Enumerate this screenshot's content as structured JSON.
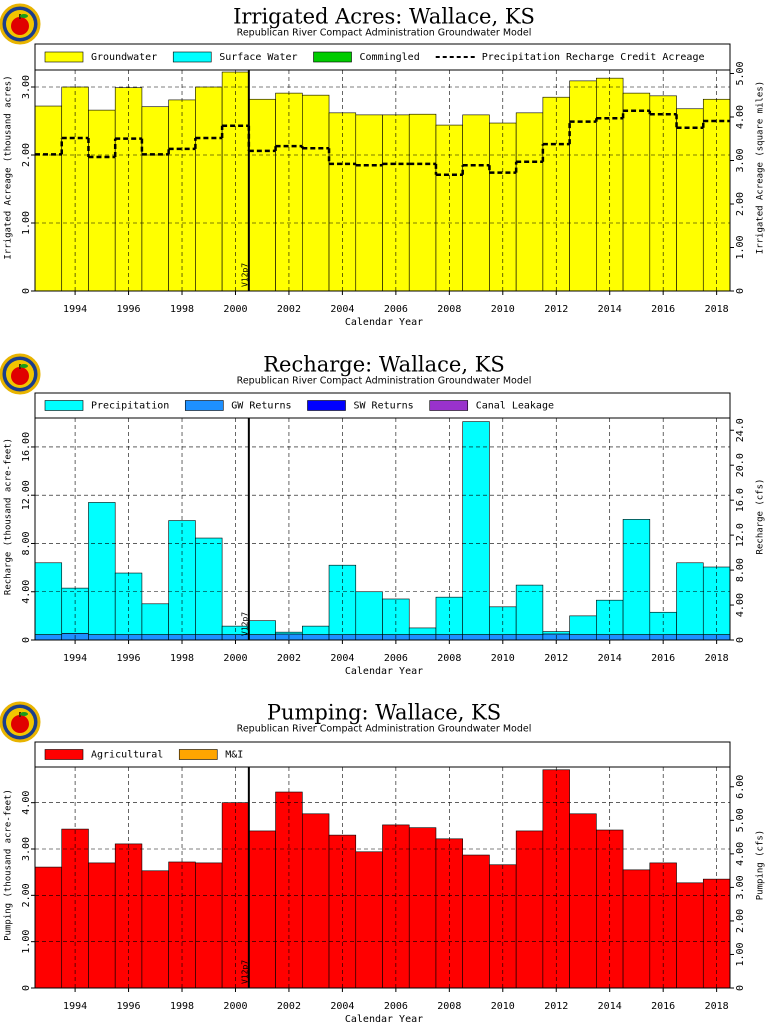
{
  "chart_data": [
    {
      "type": "bar",
      "title": "Irrigated Acres: Wallace, KS",
      "subtitle": "Republican River Compact Administration Groundwater Model",
      "x_label": "Calendar Year",
      "y_label": "Irrigated Acreage (thousand acres)",
      "y2_label": "Irrigated Acreage (square miles)",
      "x": [
        1993,
        1994,
        1995,
        1996,
        1997,
        1998,
        1999,
        2000,
        2001,
        2002,
        2003,
        2004,
        2005,
        2006,
        2007,
        2008,
        2009,
        2010,
        2011,
        2012,
        2013,
        2014,
        2015,
        2016,
        2017,
        2018
      ],
      "series": [
        {
          "name": "Groundwater",
          "color": "#ffff00",
          "values": [
            2.72,
            3.0,
            2.66,
            2.99,
            2.71,
            2.81,
            3.0,
            3.22,
            2.82,
            2.91,
            2.88,
            2.62,
            2.59,
            2.59,
            2.6,
            2.44,
            2.59,
            2.47,
            2.62,
            2.85,
            3.09,
            3.13,
            2.91,
            2.87,
            2.68,
            2.82
          ]
        },
        {
          "name": "Surface Water",
          "color": "#00ffff",
          "values": [
            0,
            0,
            0,
            0,
            0,
            0,
            0,
            0,
            0,
            0,
            0,
            0,
            0,
            0,
            0,
            0,
            0,
            0,
            0,
            0,
            0,
            0,
            0,
            0,
            0,
            0
          ]
        },
        {
          "name": "Commingled",
          "color": "#00cc00",
          "values": [
            0,
            0,
            0,
            0,
            0,
            0,
            0,
            0,
            0,
            0,
            0,
            0,
            0,
            0,
            0,
            0,
            0,
            0,
            0,
            0,
            0,
            0,
            0,
            0,
            0,
            0
          ]
        },
        {
          "name": "Precipitation Recharge Credit Acreage",
          "type": "step",
          "style": "dashed",
          "color": "#000000",
          "values": [
            2.01,
            2.25,
            1.97,
            2.24,
            2.01,
            2.09,
            2.25,
            2.43,
            2.06,
            2.13,
            2.1,
            1.87,
            1.85,
            1.87,
            1.87,
            1.71,
            1.85,
            1.74,
            1.9,
            2.16,
            2.49,
            2.54,
            2.65,
            2.6,
            2.4,
            2.5
          ]
        }
      ],
      "xlim": [
        1992.5,
        2018.5
      ],
      "xticks": [
        1994,
        1996,
        1998,
        2000,
        2002,
        2004,
        2006,
        2008,
        2010,
        2012,
        2014,
        2016,
        2018
      ],
      "ylim": [
        0,
        3.25
      ],
      "yticks": [
        0,
        {
          "value": 1,
          "label": "1.00"
        },
        {
          "value": 2,
          "label": "2.00"
        },
        {
          "value": 3,
          "label": "3.00"
        }
      ],
      "y2lim": [
        0,
        5.08
      ],
      "y2ticks": [
        0,
        {
          "value": 1,
          "label": "1.00"
        },
        {
          "value": 2,
          "label": "2.00"
        },
        {
          "value": 3,
          "label": "3.00"
        },
        {
          "value": 4,
          "label": "4.00"
        },
        {
          "value": 5,
          "label": "5.00"
        }
      ],
      "grid": true,
      "annotations": [
        {
          "text": "V12p7",
          "x": 2000.5
        }
      ]
    },
    {
      "type": "bar",
      "title": "Recharge: Wallace, KS",
      "subtitle": "Republican River Compact Administration Groundwater Model",
      "x_label": "Calendar Year",
      "y_label": "Recharge (thousand acre-feet)",
      "y2_label": "Recharge (cfs)",
      "x": [
        1993,
        1994,
        1995,
        1996,
        1997,
        1998,
        1999,
        2000,
        2001,
        2002,
        2003,
        2004,
        2005,
        2006,
        2007,
        2008,
        2009,
        2010,
        2011,
        2012,
        2013,
        2014,
        2015,
        2016,
        2017,
        2018
      ],
      "series": [
        {
          "name": "Precipitation",
          "color": "#00ffff",
          "values": [
            5.95,
            3.75,
            10.95,
            5.1,
            2.55,
            9.45,
            8,
            0.7,
            1.15,
            0.15,
            0.7,
            5.75,
            3.55,
            2.95,
            0.55,
            3.1,
            17.65,
            2.3,
            4.1,
            0.2,
            1.55,
            2.85,
            9.55,
            1.85,
            5.95,
            5.6
          ]
        },
        {
          "name": "GW Returns",
          "color": "#1e90ff",
          "values": [
            0.45,
            0.55,
            0.45,
            0.45,
            0.45,
            0.45,
            0.45,
            0.45,
            0.45,
            0.5,
            0.45,
            0.45,
            0.45,
            0.45,
            0.45,
            0.45,
            0.45,
            0.45,
            0.45,
            0.5,
            0.45,
            0.45,
            0.45,
            0.45,
            0.45,
            0.45
          ]
        },
        {
          "name": "SW Returns",
          "color": "#0000ff",
          "values": [
            0,
            0,
            0,
            0,
            0,
            0,
            0,
            0,
            0,
            0,
            0,
            0,
            0,
            0,
            0,
            0,
            0,
            0,
            0,
            0,
            0,
            0,
            0,
            0,
            0,
            0
          ]
        },
        {
          "name": "Canal Leakage",
          "color": "#9932cc",
          "values": [
            0,
            0,
            0,
            0,
            0,
            0,
            0,
            0,
            0,
            0,
            0,
            0,
            0,
            0,
            0,
            0,
            0,
            0,
            0,
            0,
            0,
            0,
            0,
            0,
            0,
            0
          ]
        }
      ],
      "xlim": [
        1992.5,
        2018.5
      ],
      "xticks": [
        1994,
        1996,
        1998,
        2000,
        2002,
        2004,
        2006,
        2008,
        2010,
        2012,
        2014,
        2016,
        2018
      ],
      "ylim": [
        0,
        18.4
      ],
      "yticks": [
        0,
        {
          "value": 4,
          "label": "4.00"
        },
        {
          "value": 8,
          "label": "8.00"
        },
        {
          "value": 12,
          "label": "12.00"
        },
        {
          "value": 16,
          "label": "16.00"
        }
      ],
      "y2lim": [
        0,
        25.4
      ],
      "y2ticks": [
        0,
        {
          "value": 4,
          "label": "4.00"
        },
        {
          "value": 8,
          "label": "8.00"
        },
        {
          "value": 12,
          "label": "12.0"
        },
        {
          "value": 16,
          "label": "16.0"
        },
        {
          "value": 20,
          "label": "20.0"
        },
        {
          "value": 24,
          "label": "24.0"
        }
      ],
      "grid": true,
      "annotations": [
        {
          "text": "V12p7",
          "x": 2000.5
        }
      ]
    },
    {
      "type": "bar",
      "title": "Pumping: Wallace, KS",
      "subtitle": "Republican River Compact Administration Groundwater Model",
      "x_label": "Calendar Year",
      "y_label": "Pumping (thousand acre-feet)",
      "y2_label": "Pumping (cfs)",
      "x": [
        1993,
        1994,
        1995,
        1996,
        1997,
        1998,
        1999,
        2000,
        2001,
        2002,
        2003,
        2004,
        2005,
        2006,
        2007,
        2008,
        2009,
        2010,
        2011,
        2012,
        2013,
        2014,
        2015,
        2016,
        2017,
        2018
      ],
      "series": [
        {
          "name": "Agricultural",
          "color": "#ff0000",
          "values": [
            2.61,
            3.43,
            2.7,
            3.11,
            2.53,
            2.72,
            2.7,
            4.0,
            3.39,
            4.23,
            3.76,
            3.3,
            2.94,
            3.52,
            3.46,
            3.22,
            2.87,
            2.66,
            3.39,
            4.71,
            3.76,
            3.41,
            2.55,
            2.7,
            2.27,
            2.35
          ]
        },
        {
          "name": "M&I",
          "color": "#ffa500",
          "values": [
            0,
            0,
            0,
            0,
            0,
            0,
            0,
            0,
            0,
            0,
            0,
            0,
            0,
            0,
            0,
            0,
            0,
            0,
            0,
            0,
            0,
            0,
            0,
            0,
            0,
            0
          ]
        }
      ],
      "xlim": [
        1992.5,
        2018.5
      ],
      "xticks": [
        1994,
        1996,
        1998,
        2000,
        2002,
        2004,
        2006,
        2008,
        2010,
        2012,
        2014,
        2016,
        2018
      ],
      "ylim": [
        0,
        4.77
      ],
      "yticks": [
        0,
        {
          "value": 1,
          "label": "1.00"
        },
        {
          "value": 2,
          "label": "2.00"
        },
        {
          "value": 3,
          "label": "3.00"
        },
        {
          "value": 4,
          "label": "4.00"
        }
      ],
      "y2lim": [
        0,
        6.59
      ],
      "y2ticks": [
        0,
        {
          "value": 1,
          "label": "1.00"
        },
        {
          "value": 2,
          "label": "2.00"
        },
        {
          "value": 3,
          "label": "3.00"
        },
        {
          "value": 4,
          "label": "4.00"
        },
        {
          "value": 5,
          "label": "5.00"
        },
        {
          "value": 6,
          "label": "6.00"
        }
      ],
      "grid": true,
      "annotations": [
        {
          "text": "V12p7",
          "x": 2000.5
        }
      ]
    }
  ]
}
